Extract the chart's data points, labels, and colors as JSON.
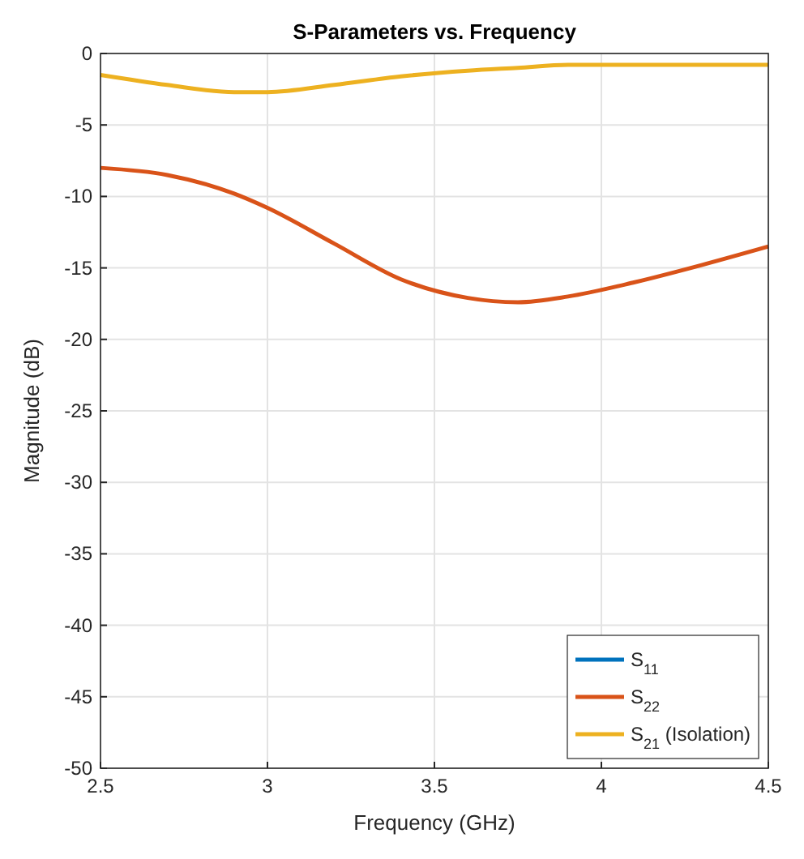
{
  "chart_data": {
    "type": "line",
    "title": "S-Parameters vs. Frequency",
    "xlabel": "Frequency (GHz)",
    "ylabel": "Magnitude (dB)",
    "x": [
      2.5,
      2.7,
      2.9,
      3.0,
      3.2,
      3.4,
      3.6,
      3.75,
      3.9,
      4.1,
      4.3,
      4.5
    ],
    "series": [
      {
        "name": "S$_{11}$",
        "color": "#0072bd",
        "values": [
          null,
          null,
          null,
          null,
          null,
          null,
          null,
          null,
          null,
          null,
          null,
          null
        ]
      },
      {
        "name": "S$_{22}$",
        "color": "#d95319",
        "values": [
          -8,
          -8.5,
          -9.8,
          -10.8,
          -13.3,
          -15.8,
          -17.1,
          -17.4,
          -17,
          -16,
          -14.8,
          -13.5
        ]
      },
      {
        "name": "S$_{21}$ (Isolation)",
        "color": "#edb120",
        "values": [
          -1.5,
          -2.2,
          -2.7,
          -2.7,
          -2.2,
          -1.6,
          -1.2,
          -1,
          -0.8,
          -0.8,
          -0.8,
          -0.8
        ]
      }
    ],
    "xlim": [
      2.5,
      4.5
    ],
    "xticks": [
      2.5,
      3,
      3.5,
      4,
      4.5
    ],
    "ylim": [
      -50,
      0
    ],
    "yticks": [
      -50,
      -45,
      -40,
      -35,
      -30,
      -25,
      -20,
      -15,
      -10,
      -5,
      0
    ],
    "grid": true,
    "legend": "bottom right",
    "line_style": "solid",
    "marker": "none"
  }
}
